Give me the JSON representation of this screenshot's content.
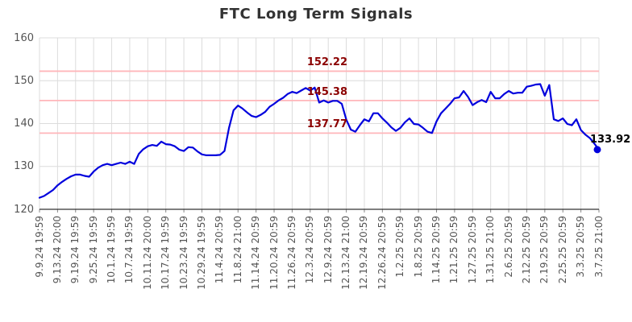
{
  "title": "FTC Long Term Signals",
  "colors": {
    "line": "#0000dd",
    "marker": "#0000dd",
    "signal_line": "#ffb6ba",
    "signal_label": "#8b0000",
    "grid": "#dcdcdc",
    "axis": "#333333",
    "tick_text": "#555555",
    "title_text": "#333333",
    "last_value_label": "#000000",
    "background": "#ffffff"
  },
  "chart_data": {
    "type": "line",
    "title": "FTC Long Term Signals",
    "xlabel": "",
    "ylabel": "",
    "ylim": [
      120,
      160
    ],
    "yticks": [
      120,
      130,
      140,
      150,
      160
    ],
    "grid": true,
    "legend": "none",
    "x_tick_labels": [
      "9.9.24 19:59",
      "9.13.24 20:00",
      "9.19.24 19:59",
      "9.25.24 19:59",
      "10.1.24 19:59",
      "10.7.24 19:59",
      "10.11.24 20:00",
      "10.17.24 19:59",
      "10.23.24 19:59",
      "10.29.24 19:59",
      "11.4.24 20:59",
      "11.8.24 21:00",
      "11.14.24 20:59",
      "11.20.24 20:59",
      "11.26.24 20:59",
      "12.3.24 20:59",
      "12.9.24 20:59",
      "12.13.24 21:00",
      "12.19.24 20:59",
      "12.26.24 20:59",
      "1.2.25 20:59",
      "1.8.25 20:59",
      "1.14.25 20:59",
      "1.21.25 20:59",
      "1.27.25 20:59",
      "1.31.25 21:00",
      "2.6.25 20:59",
      "2.12.25 20:59",
      "2.19.25 20:59",
      "2.25.25 20:59",
      "3.3.25 20:59",
      "3.7.25 21:00"
    ],
    "points_per_labeled_tick": 4,
    "signal_lines": [
      {
        "label": "152.22",
        "value": 152.22
      },
      {
        "label": "145.38",
        "value": 145.38
      },
      {
        "label": "137.77",
        "value": 137.77
      }
    ],
    "last_value_label": "133.92",
    "values": [
      122.7,
      123.1,
      123.8,
      124.5,
      125.6,
      126.4,
      127.1,
      127.7,
      128.1,
      128.1,
      127.8,
      127.6,
      128.8,
      129.7,
      130.3,
      130.6,
      130.3,
      130.6,
      130.9,
      130.6,
      131.1,
      130.6,
      132.9,
      134.0,
      134.7,
      135.0,
      134.8,
      135.8,
      135.2,
      135.1,
      134.7,
      133.9,
      133.6,
      134.5,
      134.4,
      133.5,
      132.8,
      132.6,
      132.6,
      132.6,
      132.7,
      133.6,
      139.0,
      143.1,
      144.2,
      143.5,
      142.6,
      141.8,
      141.5,
      142.0,
      142.7,
      143.9,
      144.6,
      145.4,
      146.0,
      146.9,
      147.4,
      147.1,
      147.7,
      148.3,
      147.7,
      148.4,
      144.9,
      145.4,
      144.9,
      145.3,
      145.3,
      144.6,
      140.9,
      138.6,
      138.1,
      139.6,
      141.0,
      140.5,
      142.4,
      142.4,
      141.2,
      140.2,
      139.1,
      138.3,
      139.0,
      140.3,
      141.2,
      139.9,
      139.8,
      139.0,
      138.1,
      137.8,
      140.5,
      142.4,
      143.5,
      144.6,
      145.9,
      146.1,
      147.6,
      146.2,
      144.3,
      145.0,
      145.5,
      145.0,
      147.4,
      145.9,
      145.9,
      146.9,
      147.6,
      147.0,
      147.2,
      147.2,
      148.6,
      148.8,
      149.1,
      149.2,
      146.5,
      149.0,
      141.0,
      140.6,
      141.2,
      139.9,
      139.6,
      141.0,
      138.5,
      137.4,
      136.6,
      135.3,
      133.92
    ]
  }
}
